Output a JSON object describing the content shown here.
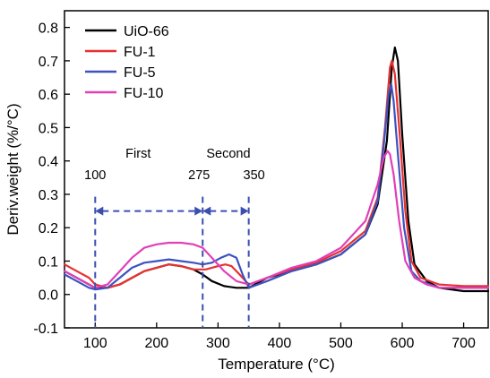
{
  "chart_data": {
    "type": "line",
    "xlabel": "Temperature (°C)",
    "ylabel": "Deriv.weight (%/°C)",
    "xlim": [
      50,
      740
    ],
    "ylim": [
      -0.1,
      0.85
    ],
    "x_ticks": [
      100,
      200,
      300,
      400,
      500,
      600,
      700
    ],
    "y_ticks": [
      -0.1,
      0.0,
      0.1,
      0.2,
      0.3,
      0.4,
      0.5,
      0.6,
      0.7,
      0.8
    ],
    "y_tick_labels": [
      "-0.1",
      "0.0",
      "0.1",
      "0.2",
      "0.3",
      "0.4",
      "0.5",
      "0.6",
      "0.7",
      "0.8"
    ],
    "grid": false,
    "legend_position": "top-left",
    "series": [
      {
        "name": "UiO-66",
        "color": "#000000",
        "points": [
          [
            50,
            0.07
          ],
          [
            70,
            0.05
          ],
          [
            90,
            0.03
          ],
          [
            100,
            0.02
          ],
          [
            120,
            0.02
          ],
          [
            140,
            0.03
          ],
          [
            160,
            0.05
          ],
          [
            180,
            0.07
          ],
          [
            200,
            0.08
          ],
          [
            220,
            0.09
          ],
          [
            240,
            0.085
          ],
          [
            260,
            0.075
          ],
          [
            275,
            0.06
          ],
          [
            290,
            0.04
          ],
          [
            310,
            0.025
          ],
          [
            330,
            0.02
          ],
          [
            350,
            0.02
          ],
          [
            380,
            0.05
          ],
          [
            420,
            0.07
          ],
          [
            460,
            0.09
          ],
          [
            500,
            0.12
          ],
          [
            540,
            0.18
          ],
          [
            560,
            0.27
          ],
          [
            575,
            0.46
          ],
          [
            583,
            0.68
          ],
          [
            588,
            0.74
          ],
          [
            593,
            0.7
          ],
          [
            600,
            0.48
          ],
          [
            610,
            0.22
          ],
          [
            620,
            0.09
          ],
          [
            640,
            0.04
          ],
          [
            660,
            0.02
          ],
          [
            700,
            0.01
          ],
          [
            740,
            0.01
          ]
        ]
      },
      {
        "name": "FU-1",
        "color": "#e83030",
        "points": [
          [
            50,
            0.09
          ],
          [
            70,
            0.07
          ],
          [
            90,
            0.05
          ],
          [
            100,
            0.03
          ],
          [
            120,
            0.02
          ],
          [
            140,
            0.03
          ],
          [
            160,
            0.05
          ],
          [
            180,
            0.07
          ],
          [
            200,
            0.08
          ],
          [
            220,
            0.09
          ],
          [
            240,
            0.085
          ],
          [
            260,
            0.075
          ],
          [
            280,
            0.075
          ],
          [
            300,
            0.085
          ],
          [
            312,
            0.09
          ],
          [
            322,
            0.085
          ],
          [
            335,
            0.06
          ],
          [
            350,
            0.03
          ],
          [
            380,
            0.05
          ],
          [
            420,
            0.075
          ],
          [
            460,
            0.095
          ],
          [
            500,
            0.13
          ],
          [
            540,
            0.19
          ],
          [
            560,
            0.29
          ],
          [
            572,
            0.5
          ],
          [
            580,
            0.68
          ],
          [
            583,
            0.7
          ],
          [
            588,
            0.66
          ],
          [
            595,
            0.5
          ],
          [
            605,
            0.25
          ],
          [
            615,
            0.1
          ],
          [
            630,
            0.05
          ],
          [
            660,
            0.03
          ],
          [
            700,
            0.025
          ],
          [
            740,
            0.025
          ]
        ]
      },
      {
        "name": "FU-5",
        "color": "#3d52c0",
        "points": [
          [
            50,
            0.06
          ],
          [
            70,
            0.04
          ],
          [
            90,
            0.02
          ],
          [
            100,
            0.015
          ],
          [
            120,
            0.02
          ],
          [
            140,
            0.05
          ],
          [
            160,
            0.08
          ],
          [
            180,
            0.095
          ],
          [
            200,
            0.1
          ],
          [
            220,
            0.105
          ],
          [
            240,
            0.1
          ],
          [
            260,
            0.095
          ],
          [
            275,
            0.09
          ],
          [
            290,
            0.095
          ],
          [
            305,
            0.11
          ],
          [
            318,
            0.12
          ],
          [
            330,
            0.11
          ],
          [
            340,
            0.06
          ],
          [
            350,
            0.02
          ],
          [
            380,
            0.04
          ],
          [
            420,
            0.07
          ],
          [
            460,
            0.09
          ],
          [
            500,
            0.12
          ],
          [
            540,
            0.18
          ],
          [
            560,
            0.28
          ],
          [
            570,
            0.45
          ],
          [
            578,
            0.6
          ],
          [
            582,
            0.63
          ],
          [
            586,
            0.58
          ],
          [
            593,
            0.42
          ],
          [
            603,
            0.2
          ],
          [
            615,
            0.07
          ],
          [
            630,
            0.04
          ],
          [
            660,
            0.02
          ],
          [
            700,
            0.02
          ],
          [
            740,
            0.02
          ]
        ]
      },
      {
        "name": "FU-10",
        "color": "#e040b8",
        "points": [
          [
            50,
            0.07
          ],
          [
            70,
            0.05
          ],
          [
            90,
            0.03
          ],
          [
            100,
            0.02
          ],
          [
            120,
            0.03
          ],
          [
            140,
            0.07
          ],
          [
            160,
            0.11
          ],
          [
            180,
            0.14
          ],
          [
            200,
            0.15
          ],
          [
            220,
            0.155
          ],
          [
            240,
            0.155
          ],
          [
            260,
            0.15
          ],
          [
            275,
            0.14
          ],
          [
            290,
            0.11
          ],
          [
            310,
            0.07
          ],
          [
            330,
            0.04
          ],
          [
            350,
            0.03
          ],
          [
            380,
            0.05
          ],
          [
            420,
            0.08
          ],
          [
            460,
            0.1
          ],
          [
            500,
            0.14
          ],
          [
            540,
            0.22
          ],
          [
            560,
            0.33
          ],
          [
            570,
            0.41
          ],
          [
            576,
            0.43
          ],
          [
            580,
            0.42
          ],
          [
            586,
            0.36
          ],
          [
            595,
            0.22
          ],
          [
            605,
            0.1
          ],
          [
            620,
            0.05
          ],
          [
            640,
            0.03
          ],
          [
            660,
            0.02
          ],
          [
            700,
            0.02
          ],
          [
            740,
            0.02
          ]
        ]
      }
    ],
    "annotations": {
      "first": "First",
      "second": "Second",
      "t100": "100",
      "t275": "275",
      "t350": "350"
    },
    "markers_x": [
      100,
      275,
      350
    ],
    "bracket_y": 0.25
  }
}
